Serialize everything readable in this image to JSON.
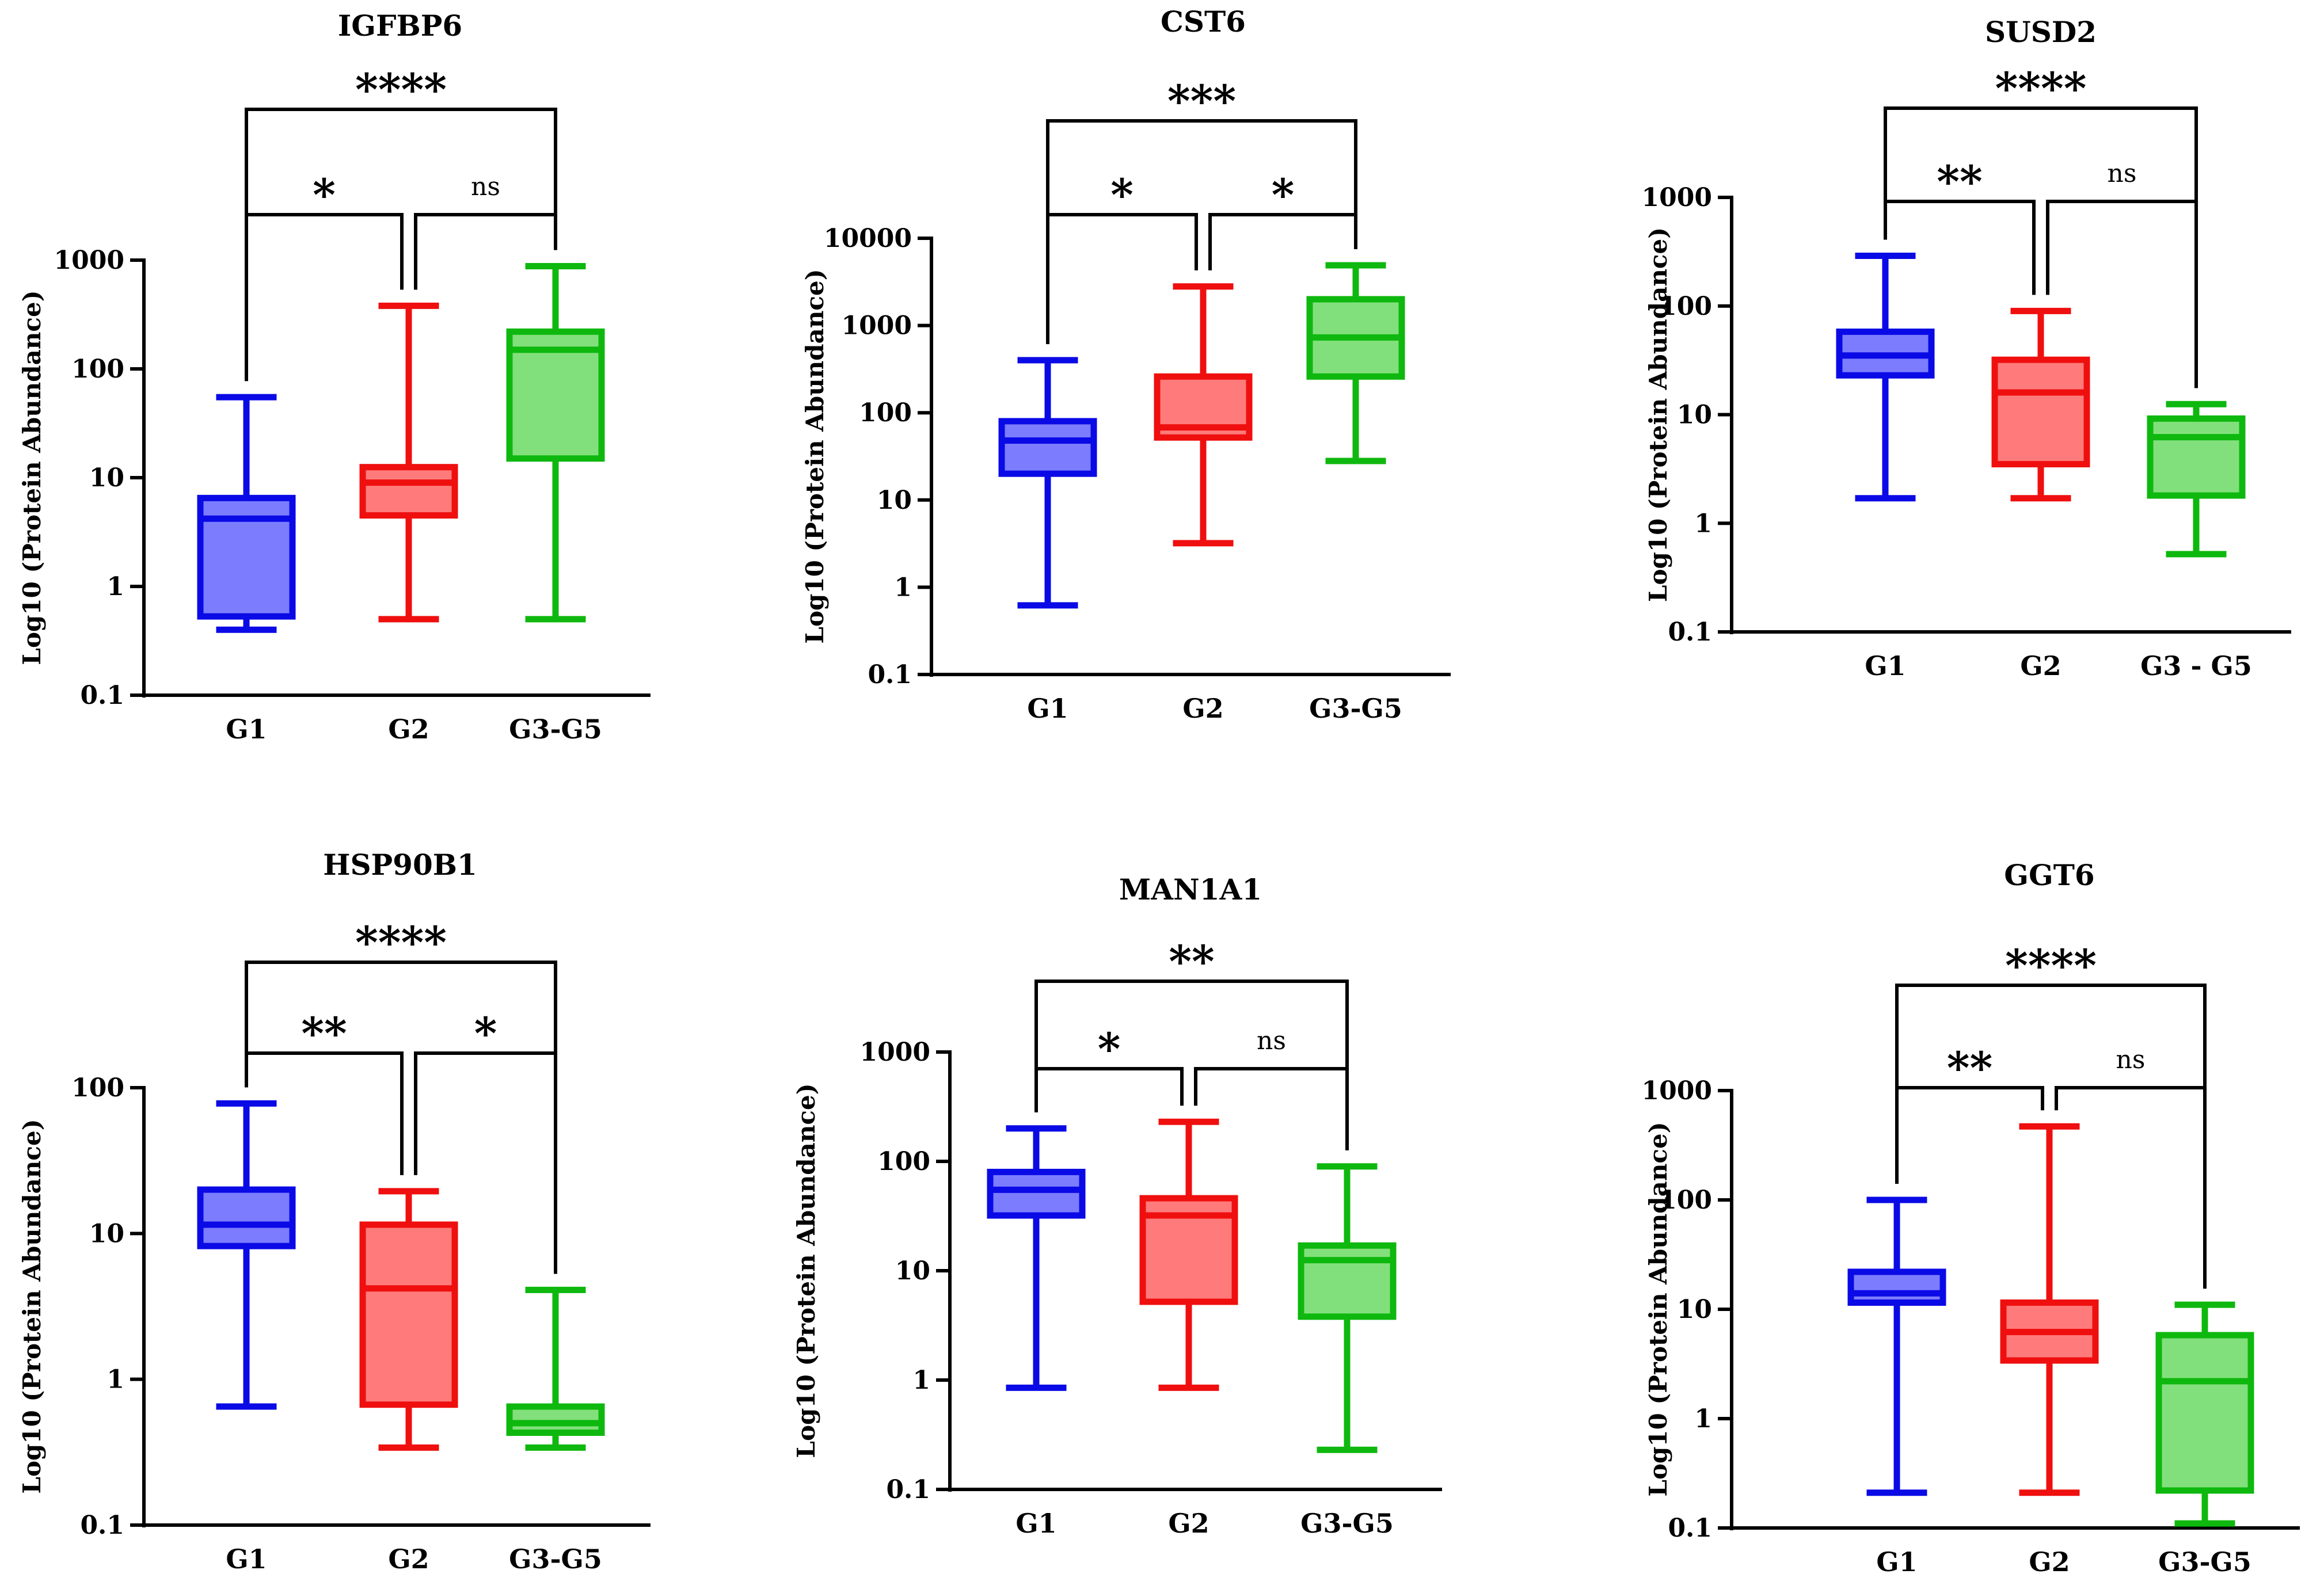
{
  "colors": {
    "G1": {
      "stroke": "#0a0ae6",
      "fill": "#7c7cff"
    },
    "G2": {
      "stroke": "#ef0f0f",
      "fill": "#ff7b7b"
    },
    "G3": {
      "stroke": "#0eb80e",
      "fill": "#82e07c"
    }
  },
  "chart_data": [
    {
      "type": "box",
      "title": "IGFBP6",
      "ylabel": "Log10 (Protein Abundance)",
      "yscale": "log",
      "ylim": [
        0.1,
        1000
      ],
      "yticks": [
        "0.1",
        "1",
        "10",
        "100",
        "1000"
      ],
      "categories": [
        "G1",
        "G2",
        "G3-G5"
      ],
      "boxes": [
        {
          "min": 0.4,
          "q1": 0.53,
          "median": 4.2,
          "q3": 6.5,
          "max": 55
        },
        {
          "min": 0.5,
          "q1": 4.5,
          "median": 9.0,
          "q3": 12.5,
          "max": 380
        },
        {
          "min": 0.5,
          "q1": 15,
          "median": 150,
          "q3": 220,
          "max": 880
        }
      ],
      "comparisons": [
        {
          "from": 0,
          "to": 1,
          "label": "*"
        },
        {
          "from": 1,
          "to": 2,
          "label": "ns"
        },
        {
          "from": 0,
          "to": 2,
          "label": "****"
        }
      ]
    },
    {
      "type": "box",
      "title": "CST6",
      "ylabel": "Log10 (Protein Abundance)",
      "yscale": "log",
      "ylim": [
        0.1,
        10000
      ],
      "yticks": [
        "0.1",
        "1",
        "10",
        "100",
        "1000",
        "10000"
      ],
      "categories": [
        "G1",
        "G2",
        "G3-G5"
      ],
      "boxes": [
        {
          "min": 0.62,
          "q1": 20,
          "median": 48,
          "q3": 80,
          "max": 400
        },
        {
          "min": 3.2,
          "q1": 52,
          "median": 68,
          "q3": 260,
          "max": 2800
        },
        {
          "min": 28,
          "q1": 260,
          "median": 730,
          "q3": 2000,
          "max": 4900
        }
      ],
      "comparisons": [
        {
          "from": 0,
          "to": 1,
          "label": "*"
        },
        {
          "from": 1,
          "to": 2,
          "label": "*"
        },
        {
          "from": 0,
          "to": 2,
          "label": "***"
        }
      ]
    },
    {
      "type": "box",
      "title": "SUSD2",
      "ylabel": "Log10 (Protein Abundance)",
      "yscale": "log",
      "ylim": [
        0.1,
        1000
      ],
      "yticks": [
        "0.1",
        "1",
        "10",
        "100",
        "1000"
      ],
      "categories": [
        "G1",
        "G2",
        "G3 - G5"
      ],
      "boxes": [
        {
          "min": 1.7,
          "q1": 23,
          "median": 35,
          "q3": 58,
          "max": 290
        },
        {
          "min": 1.7,
          "q1": 3.5,
          "median": 16,
          "q3": 32,
          "max": 90
        },
        {
          "min": 0.52,
          "q1": 1.8,
          "median": 6.2,
          "q3": 9.2,
          "max": 12.5
        }
      ],
      "comparisons": [
        {
          "from": 0,
          "to": 1,
          "label": "**"
        },
        {
          "from": 1,
          "to": 2,
          "label": "ns"
        },
        {
          "from": 0,
          "to": 2,
          "label": "****"
        }
      ]
    },
    {
      "type": "box",
      "title": "HSP90B1",
      "ylabel": "Log10 (Protein Abundance)",
      "yscale": "log",
      "ylim": [
        0.1,
        100
      ],
      "yticks": [
        "0.1",
        "1",
        "10",
        "100"
      ],
      "categories": [
        "G1",
        "G2",
        "G3-G5"
      ],
      "boxes": [
        {
          "min": 0.65,
          "q1": 8.2,
          "median": 11.5,
          "q3": 20,
          "max": 78
        },
        {
          "min": 0.34,
          "q1": 0.67,
          "median": 4.2,
          "q3": 11.5,
          "max": 19.5
        },
        {
          "min": 0.34,
          "q1": 0.43,
          "median": 0.5,
          "q3": 0.65,
          "max": 4.1
        }
      ],
      "comparisons": [
        {
          "from": 0,
          "to": 1,
          "label": "**"
        },
        {
          "from": 1,
          "to": 2,
          "label": "*"
        },
        {
          "from": 0,
          "to": 2,
          "label": "****"
        }
      ]
    },
    {
      "type": "box",
      "title": "MAN1A1",
      "ylabel": "Log10 (Protein Abundance)",
      "yscale": "log",
      "ylim": [
        0.1,
        1000
      ],
      "yticks": [
        "0.1",
        "1",
        "10",
        "100",
        "1000"
      ],
      "categories": [
        "G1",
        "G2",
        "G3-G5"
      ],
      "boxes": [
        {
          "min": 0.85,
          "q1": 32,
          "median": 55,
          "q3": 80,
          "max": 200
        },
        {
          "min": 0.85,
          "q1": 5.2,
          "median": 32,
          "q3": 46,
          "max": 230
        },
        {
          "min": 0.23,
          "q1": 3.8,
          "median": 12.5,
          "q3": 17,
          "max": 90
        }
      ],
      "comparisons": [
        {
          "from": 0,
          "to": 1,
          "label": "*"
        },
        {
          "from": 1,
          "to": 2,
          "label": "ns"
        },
        {
          "from": 0,
          "to": 2,
          "label": "**"
        }
      ]
    },
    {
      "type": "box",
      "title": "GGT6",
      "ylabel": "Log10 (Protein Abundance)",
      "yscale": "log",
      "ylim": [
        0.1,
        1000
      ],
      "yticks": [
        "0.1",
        "1",
        "10",
        "100",
        "1000"
      ],
      "categories": [
        "G1",
        "G2",
        "G3-G5"
      ],
      "boxes": [
        {
          "min": 0.21,
          "q1": 11.5,
          "median": 14,
          "q3": 22,
          "max": 100
        },
        {
          "min": 0.21,
          "q1": 3.4,
          "median": 6.2,
          "q3": 11.5,
          "max": 470
        },
        {
          "min": 0.11,
          "q1": 0.22,
          "median": 2.2,
          "q3": 5.8,
          "max": 11
        }
      ],
      "comparisons": [
        {
          "from": 0,
          "to": 1,
          "label": "**"
        },
        {
          "from": 1,
          "to": 2,
          "label": "ns"
        },
        {
          "from": 0,
          "to": 2,
          "label": "****"
        }
      ]
    }
  ]
}
